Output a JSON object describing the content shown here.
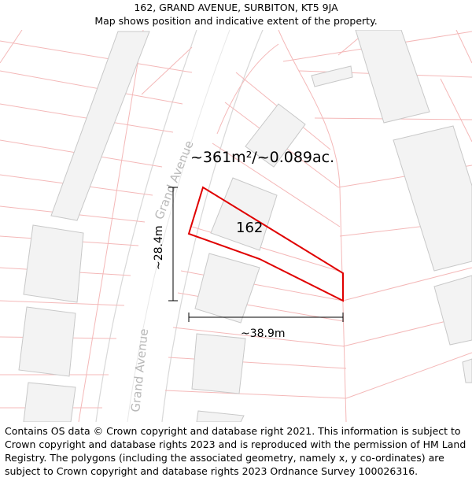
{
  "header": {
    "title": "162, GRAND AVENUE, SURBITON, KT5 9JA",
    "subtitle": "Map shows position and indicative extent of the property."
  },
  "map": {
    "area_label": "~361m²/~0.089ac.",
    "plot_label": "162",
    "dim_vertical": "~28.4m",
    "dim_horizontal": "~38.9m",
    "street_label_upper": "Grand Avenue",
    "street_label_lower": "Grand Avenue",
    "colors": {
      "boundary": "#f4b8b8",
      "building_fill": "#f3f3f3",
      "building_stroke": "#c8c8c8",
      "road_edge": "#d8d8d8",
      "property": "#e00000",
      "dimension": "#000000"
    }
  },
  "footer": {
    "copyright": "Contains OS data © Crown copyright and database right 2021. This information is subject to Crown copyright and database rights 2023 and is reproduced with the permission of HM Land Registry. The polygons (including the associated geometry, namely x, y co-ordinates) are subject to Crown copyright and database rights 2023 Ordnance Survey 100026316."
  }
}
